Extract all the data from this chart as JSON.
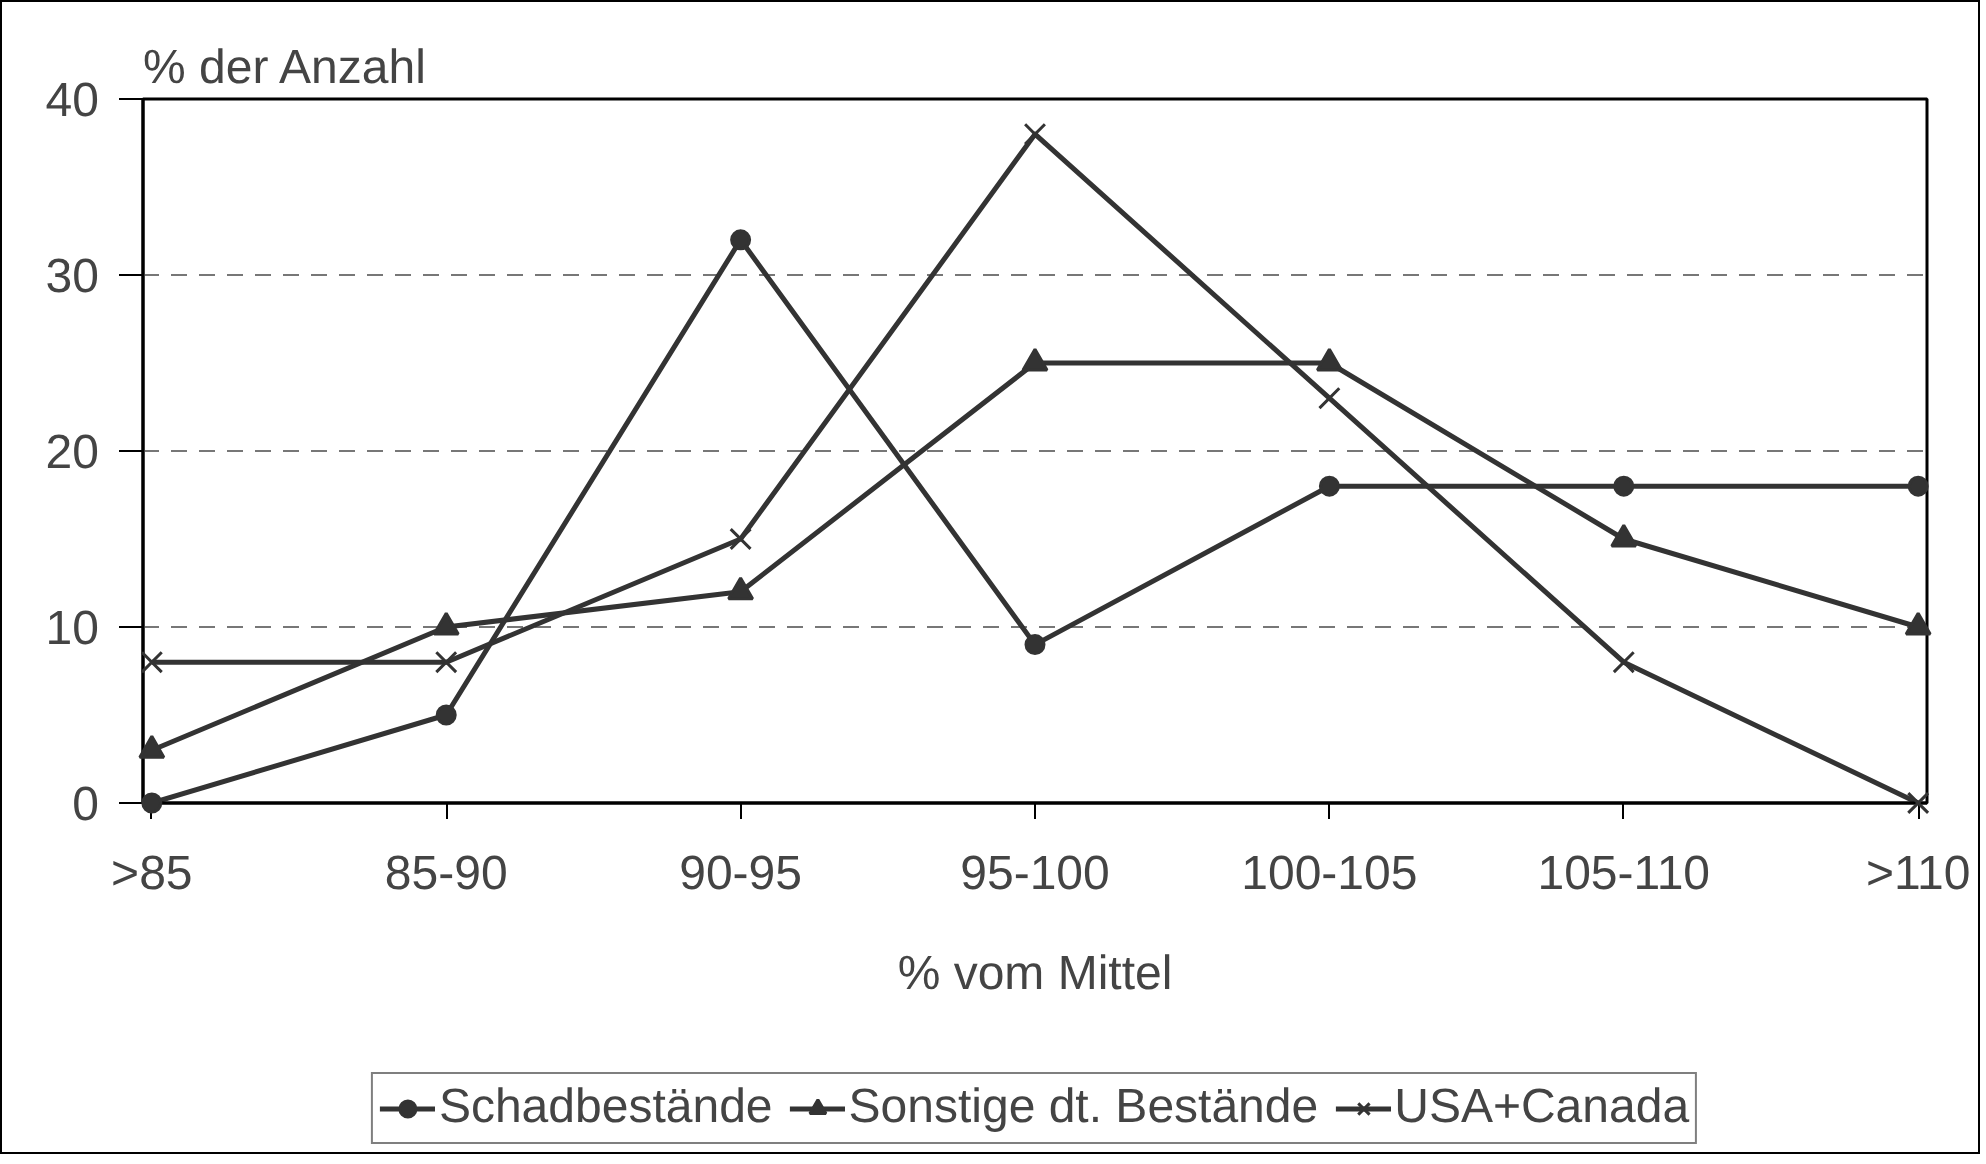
{
  "chart_data": {
    "type": "line",
    "ylabel": "% der Anzahl",
    "xlabel": "% vom Mittel",
    "categories": [
      ">85",
      "85-90",
      "90-95",
      "95-100",
      "100-105",
      "105-110",
      ">110"
    ],
    "series": [
      {
        "name": "Schadbestände",
        "color": "#333333",
        "marker": "circle",
        "values": [
          0,
          5,
          32,
          9,
          18,
          18,
          18
        ]
      },
      {
        "name": "Sonstige dt. Bestände",
        "color": "#333333",
        "marker": "triangle",
        "values": [
          3,
          10,
          12,
          25,
          25,
          15,
          10
        ]
      },
      {
        "name": "USA+Canada",
        "color": "#333333",
        "marker": "cross",
        "values": [
          8,
          8,
          15,
          38,
          23,
          8,
          0
        ]
      }
    ],
    "ylim": [
      0,
      40
    ],
    "yticks": [
      0,
      10,
      20,
      30,
      40
    ],
    "grid": "y",
    "legend": "bottom",
    "line_style": "solid"
  }
}
